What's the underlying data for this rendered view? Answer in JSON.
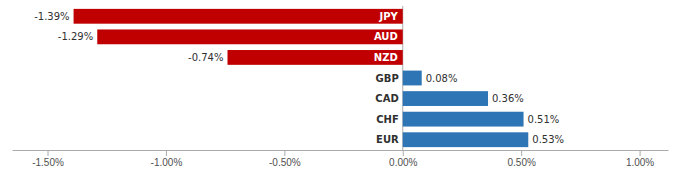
{
  "chart_data": {
    "type": "bar",
    "orientation": "horizontal",
    "categories": [
      "JPY",
      "AUD",
      "NZD",
      "GBP",
      "CAD",
      "CHF",
      "EUR"
    ],
    "values": [
      -1.39,
      -1.29,
      -0.74,
      0.08,
      0.36,
      0.51,
      0.53
    ],
    "value_labels": [
      "-1.39%",
      "-1.29%",
      "-0.74%",
      "0.08%",
      "0.36%",
      "0.51%",
      "0.53%"
    ],
    "data_labels": true,
    "colors": [
      "#c00000",
      "#c00000",
      "#c00000",
      "#2e75b6",
      "#2e75b6",
      "#2e75b6",
      "#2e75b6"
    ],
    "xlim": [
      -1.65,
      1.12
    ],
    "xticks": [
      {
        "value": -1.5,
        "label": "-1.50%"
      },
      {
        "value": -1.0,
        "label": "-1.00%"
      },
      {
        "value": -0.5,
        "label": "-0.50%"
      },
      {
        "value": 0.0,
        "label": "0.00%"
      },
      {
        "value": 0.5,
        "label": "0.50%"
      },
      {
        "value": 1.0,
        "label": "1.00%"
      }
    ],
    "grid": false
  }
}
